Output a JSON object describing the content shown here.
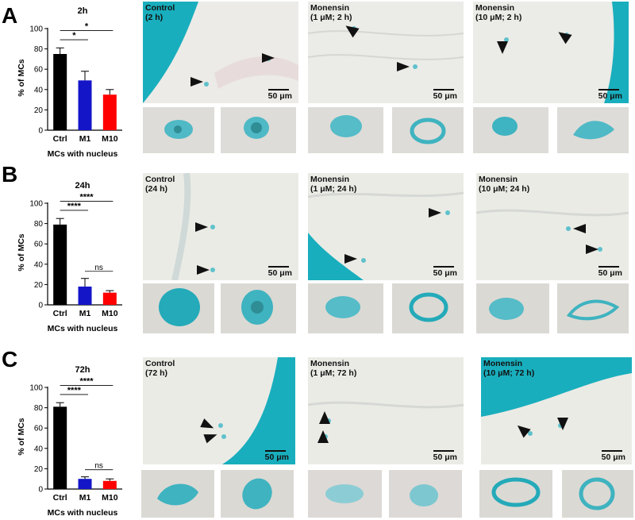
{
  "panels": [
    {
      "letter": "A",
      "chart": {
        "title": "2h",
        "ylabel": "% of MCs",
        "xlabel": "MCs with nucleus"
      },
      "images": [
        {
          "label": "Control\n(2 h)",
          "scale": "50 μm"
        },
        {
          "label": "Monensin\n(1 μM; 2 h)",
          "scale": "50 μm"
        },
        {
          "label": "Monensin\n(10 μM; 2 h)",
          "scale": "50 μm"
        }
      ]
    },
    {
      "letter": "B",
      "chart": {
        "title": "24h",
        "ylabel": "% of MCs",
        "xlabel": "MCs with nucleus"
      },
      "images": [
        {
          "label": "Control\n(24 h)",
          "scale": "50 μm"
        },
        {
          "label": "Monensin\n(1 μM; 24 h)",
          "scale": "50 μm"
        },
        {
          "label": "Monensin\n(10 μM; 24 h)",
          "scale": "50 μm"
        }
      ]
    },
    {
      "letter": "C",
      "chart": {
        "title": "72h",
        "ylabel": "% of MCs",
        "xlabel": "MCs with nucleus"
      },
      "images": [
        {
          "label": "Control\n(72 h)",
          "scale": "50 μm"
        },
        {
          "label": "Monensin\n(1 μM; 72 h)",
          "scale": "50 μm"
        },
        {
          "label": "Monensin\n(10 μM; 72 h)",
          "scale": "50 μm"
        }
      ]
    }
  ],
  "chart_data": [
    {
      "type": "bar",
      "title": "2h",
      "ylabel": "% of MCs",
      "xlabel": "MCs with nucleus",
      "categories": [
        "Ctrl",
        "M1",
        "M10"
      ],
      "values": [
        75,
        49,
        35
      ],
      "errors": [
        6,
        9,
        5
      ],
      "colors": [
        "#000000",
        "#1515c8",
        "#ff0000"
      ],
      "ylim": [
        0,
        100
      ],
      "yticks": [
        0,
        20,
        40,
        60,
        80,
        100
      ],
      "significance": [
        {
          "from": 0,
          "to": 1,
          "label": "*"
        },
        {
          "from": 0,
          "to": 2,
          "label": "*"
        }
      ]
    },
    {
      "type": "bar",
      "title": "24h",
      "ylabel": "% of MCs",
      "xlabel": "MCs with nucleus",
      "categories": [
        "Ctrl",
        "M1",
        "M10"
      ],
      "values": [
        79,
        18,
        12
      ],
      "errors": [
        6,
        8,
        2
      ],
      "colors": [
        "#000000",
        "#1515c8",
        "#ff0000"
      ],
      "ylim": [
        0,
        100
      ],
      "yticks": [
        0,
        20,
        40,
        60,
        80,
        100
      ],
      "significance": [
        {
          "from": 0,
          "to": 1,
          "label": "****"
        },
        {
          "from": 0,
          "to": 2,
          "label": "****"
        },
        {
          "from": 1,
          "to": 2,
          "label": "ns"
        }
      ]
    },
    {
      "type": "bar",
      "title": "72h",
      "ylabel": "% of MCs",
      "xlabel": "MCs with nucleus",
      "categories": [
        "Ctrl",
        "M1",
        "M10"
      ],
      "values": [
        81,
        10,
        8
      ],
      "errors": [
        4,
        2,
        2
      ],
      "colors": [
        "#000000",
        "#1515c8",
        "#ff0000"
      ],
      "ylim": [
        0,
        100
      ],
      "yticks": [
        0,
        20,
        40,
        60,
        80,
        100
      ],
      "significance": [
        {
          "from": 0,
          "to": 1,
          "label": "****"
        },
        {
          "from": 0,
          "to": 2,
          "label": "****"
        },
        {
          "from": 1,
          "to": 2,
          "label": "ns"
        }
      ]
    }
  ]
}
